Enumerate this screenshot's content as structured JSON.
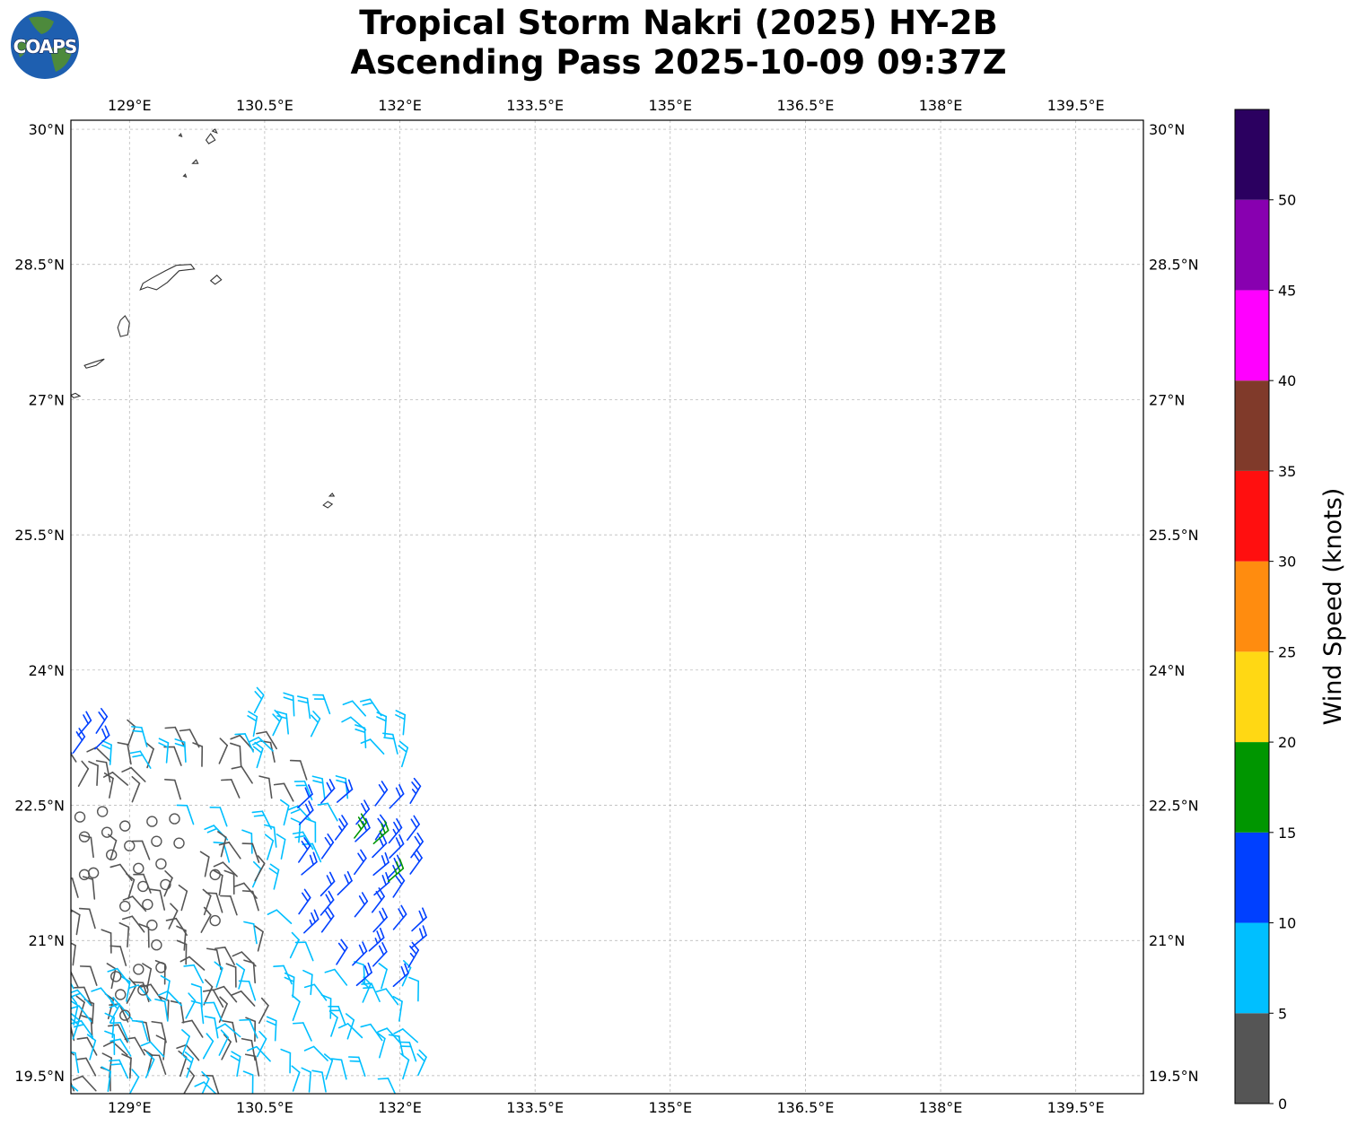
{
  "title": {
    "line1": "Tropical Storm Nakri (2025) HY-2B",
    "line2": "Ascending Pass 2025-10-09 09:37Z"
  },
  "logo": {
    "text": "COAPS",
    "colors": {
      "ocean": "#1e5fb0",
      "land": "#4d8a3c"
    }
  },
  "map": {
    "lon_range": [
      128.35,
      140.25
    ],
    "lat_range": [
      19.3,
      30.1
    ],
    "lon_ticks": [
      129,
      130.5,
      132,
      133.5,
      135,
      136.5,
      138,
      139.5
    ],
    "lon_labels": [
      "129°E",
      "130.5°E",
      "132°E",
      "133.5°E",
      "135°E",
      "136.5°E",
      "138°E",
      "139.5°E"
    ],
    "lat_ticks": [
      30,
      28.5,
      27,
      25.5,
      24,
      22.5,
      21,
      19.5
    ],
    "lat_labels": [
      "30°N",
      "28.5°N",
      "27°N",
      "25.5°N",
      "24°N",
      "22.5°N",
      "21°N",
      "19.5°N"
    ],
    "grid": true,
    "grid_color": "#b0b0b0"
  },
  "colorbar": {
    "label": "Wind Speed (knots)",
    "ticks": [
      "0",
      "5",
      "10",
      "15",
      "20",
      "25",
      "30",
      "35",
      "40",
      "45",
      "50"
    ],
    "bins": [
      {
        "from": 0,
        "to": 5,
        "color": "#555555"
      },
      {
        "from": 5,
        "to": 10,
        "color": "#00bfff"
      },
      {
        "from": 10,
        "to": 15,
        "color": "#0040ff"
      },
      {
        "from": 15,
        "to": 20,
        "color": "#009600"
      },
      {
        "from": 20,
        "to": 25,
        "color": "#ffd814"
      },
      {
        "from": 25,
        "to": 30,
        "color": "#ff8c0f"
      },
      {
        "from": 30,
        "to": 35,
        "color": "#ff0f0f"
      },
      {
        "from": 35,
        "to": 40,
        "color": "#803a2a"
      },
      {
        "from": 40,
        "to": 45,
        "color": "#ff00ff"
      },
      {
        "from": 45,
        "to": 50,
        "color": "#8800b0"
      },
      {
        "from": 50,
        "to": 55,
        "color": "#2b0060"
      }
    ]
  },
  "islands": [
    {
      "name": "amami",
      "pts": [
        [
          129.15,
          28.29
        ],
        [
          129.25,
          28.35
        ],
        [
          129.4,
          28.43
        ],
        [
          129.52,
          28.49
        ],
        [
          129.68,
          28.5
        ],
        [
          129.72,
          28.45
        ],
        [
          129.55,
          28.43
        ],
        [
          129.42,
          28.3
        ],
        [
          129.3,
          28.22
        ],
        [
          129.2,
          28.25
        ],
        [
          129.12,
          28.22
        ]
      ]
    },
    {
      "name": "kikai",
      "pts": [
        [
          129.9,
          28.32
        ],
        [
          129.97,
          28.38
        ],
        [
          130.02,
          28.33
        ],
        [
          129.95,
          28.28
        ]
      ]
    },
    {
      "name": "tokunoshima",
      "pts": [
        [
          128.9,
          27.88
        ],
        [
          128.95,
          27.93
        ],
        [
          129.0,
          27.85
        ],
        [
          128.98,
          27.72
        ],
        [
          128.9,
          27.7
        ],
        [
          128.87,
          27.8
        ]
      ]
    },
    {
      "name": "okinoerabu",
      "pts": [
        [
          128.5,
          27.38
        ],
        [
          128.62,
          27.42
        ],
        [
          128.72,
          27.45
        ],
        [
          128.63,
          27.38
        ],
        [
          128.52,
          27.35
        ]
      ]
    },
    {
      "name": "yoron",
      "pts": [
        [
          128.35,
          27.05
        ],
        [
          128.4,
          27.07
        ],
        [
          128.45,
          27.04
        ],
        [
          128.38,
          27.02
        ]
      ]
    },
    {
      "name": "tokara1",
      "pts": [
        [
          129.85,
          29.88
        ],
        [
          129.9,
          29.95
        ],
        [
          129.95,
          29.88
        ],
        [
          129.88,
          29.84
        ]
      ]
    },
    {
      "name": "tokara2",
      "pts": [
        [
          129.92,
          29.98
        ],
        [
          129.95,
          30.0
        ],
        [
          129.97,
          29.96
        ]
      ]
    },
    {
      "name": "tokara3",
      "pts": [
        [
          129.7,
          29.62
        ],
        [
          129.74,
          29.66
        ],
        [
          129.76,
          29.62
        ]
      ]
    },
    {
      "name": "tokara4",
      "pts": [
        [
          129.6,
          29.48
        ],
        [
          129.62,
          29.5
        ],
        [
          129.63,
          29.47
        ]
      ]
    },
    {
      "name": "tokara5",
      "pts": [
        [
          129.55,
          29.93
        ],
        [
          129.57,
          29.95
        ],
        [
          129.58,
          29.92
        ]
      ]
    },
    {
      "name": "daito-kita",
      "pts": [
        [
          131.22,
          25.93
        ],
        [
          131.25,
          25.96
        ],
        [
          131.27,
          25.93
        ]
      ]
    },
    {
      "name": "daito-minami",
      "pts": [
        [
          131.15,
          25.83
        ],
        [
          131.2,
          25.87
        ],
        [
          131.25,
          25.84
        ],
        [
          131.2,
          25.8
        ]
      ]
    }
  ],
  "island_color": "#333333",
  "barb_color_weak": "#555555",
  "barb_color_calm": "#555555",
  "calm_points": [
    [
      128.45,
      22.37
    ],
    [
      128.7,
      22.43
    ],
    [
      128.95,
      22.27
    ],
    [
      129.25,
      22.32
    ],
    [
      129.5,
      22.35
    ],
    [
      128.5,
      22.15
    ],
    [
      128.75,
      22.2
    ],
    [
      129.0,
      22.05
    ],
    [
      129.3,
      22.1
    ],
    [
      129.55,
      22.08
    ],
    [
      128.8,
      21.95
    ],
    [
      129.1,
      21.8
    ],
    [
      129.35,
      21.85
    ],
    [
      128.5,
      21.73
    ],
    [
      128.6,
      21.75
    ],
    [
      129.15,
      21.6
    ],
    [
      129.4,
      21.62
    ],
    [
      128.95,
      21.38
    ],
    [
      129.2,
      21.4
    ],
    [
      129.25,
      21.17
    ],
    [
      129.95,
      21.73
    ],
    [
      129.95,
      21.22
    ],
    [
      129.3,
      20.95
    ],
    [
      129.1,
      20.68
    ],
    [
      129.35,
      20.7
    ],
    [
      128.85,
      20.6
    ],
    [
      128.9,
      20.4
    ],
    [
      129.15,
      20.45
    ],
    [
      128.95,
      20.17
    ]
  ],
  "barb_regions": [
    {
      "lon": [
        128.4,
        131.0
      ],
      "lat": [
        22.55,
        23.3
      ],
      "speed": 3
    },
    {
      "lon": [
        128.4,
        129.6
      ],
      "lat": [
        22.95,
        23.2
      ],
      "speed": 8
    },
    {
      "lon": [
        128.2,
        128.9
      ],
      "lat": [
        22.9,
        23.3
      ],
      "speed": 11
    },
    {
      "lon": [
        130.4,
        132.0
      ],
      "lat": [
        22.9,
        23.6
      ],
      "speed": 8
    },
    {
      "lon": [
        129.7,
        131.4
      ],
      "lat": [
        21.9,
        22.4
      ],
      "speed": 7
    },
    {
      "lon": [
        131.0,
        131.9
      ],
      "lat": [
        22.35,
        22.6
      ],
      "speed": 8
    },
    {
      "lon": [
        130.4,
        131.1
      ],
      "lat": [
        20.4,
        22.3
      ],
      "speed": 7
    },
    {
      "lon": [
        128.4,
        130.5
      ],
      "lat": [
        19.3,
        22.0
      ],
      "speed": 3
    },
    {
      "lon": [
        128.4,
        132.3
      ],
      "lat": [
        19.3,
        20.6
      ],
      "speed": 7
    },
    {
      "lon": [
        130.9,
        132.1
      ],
      "lat": [
        20.5,
        22.5
      ],
      "speed": 12
    },
    {
      "lon": [
        131.5,
        131.7
      ],
      "lat": [
        22.1,
        22.2
      ],
      "speed": 17
    },
    {
      "lon": [
        131.85,
        132.0
      ],
      "lat": [
        21.45,
        21.65
      ],
      "speed": 17
    }
  ]
}
